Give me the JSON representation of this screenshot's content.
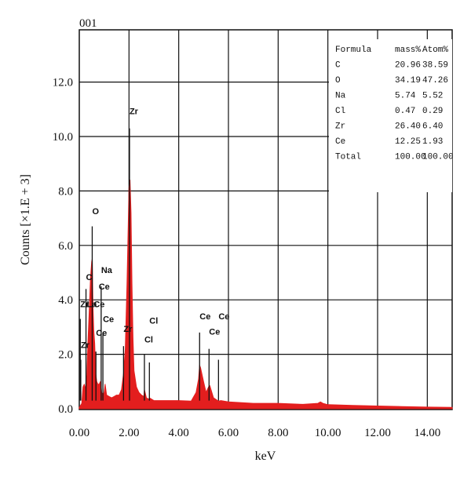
{
  "chart_data": {
    "type": "line",
    "sample_id": "001",
    "xlabel": "keV",
    "ylabel": "Counts [×1.E + 3]",
    "xlim": [
      0,
      15
    ],
    "ylim": [
      0,
      14
    ],
    "xticks": [
      "0.00",
      "2.00",
      "4.00",
      "6.00",
      "8.00",
      "10.00",
      "12.00",
      "14.00"
    ],
    "yticks": [
      "0.0",
      "2.0",
      "4.0",
      "6.0",
      "8.0",
      "10.0",
      "12.0"
    ],
    "grid": true,
    "spectrum_color": "#e31e1e",
    "spectrum": {
      "x": [
        0.0,
        0.1,
        0.15,
        0.2,
        0.25,
        0.28,
        0.3,
        0.35,
        0.4,
        0.45,
        0.5,
        0.52,
        0.55,
        0.58,
        0.62,
        0.66,
        0.7,
        0.75,
        0.8,
        0.85,
        0.88,
        0.9,
        0.95,
        1.0,
        1.04,
        1.1,
        1.2,
        1.3,
        1.4,
        1.5,
        1.6,
        1.7,
        1.78,
        1.85,
        1.92,
        1.97,
        2.0,
        2.04,
        2.08,
        2.12,
        2.16,
        2.2,
        2.3,
        2.4,
        2.5,
        2.6,
        2.62,
        2.7,
        2.8,
        2.82,
        3.0,
        3.5,
        4.0,
        4.5,
        4.7,
        4.8,
        4.84,
        4.88,
        5.0,
        5.1,
        5.2,
        5.25,
        5.3,
        5.4,
        5.6,
        5.7,
        6.0,
        7.0,
        8.0,
        9.0,
        9.6,
        9.7,
        9.8,
        10.0,
        11.0,
        12.0,
        13.0,
        14.0,
        15.0
      ],
      "y": [
        0.05,
        0.2,
        0.8,
        0.9,
        0.7,
        1.2,
        1.1,
        2.5,
        3.6,
        4.8,
        5.4,
        5.5,
        3.8,
        2.9,
        2.4,
        1.3,
        1.0,
        0.9,
        0.9,
        1.0,
        0.8,
        0.6,
        0.5,
        0.6,
        0.9,
        0.5,
        0.45,
        0.4,
        0.45,
        0.5,
        0.5,
        0.7,
        1.3,
        2.2,
        4.6,
        6.8,
        8.1,
        8.4,
        7.2,
        4.6,
        2.6,
        1.4,
        0.8,
        0.6,
        0.5,
        0.45,
        0.7,
        0.4,
        0.35,
        0.4,
        0.3,
        0.3,
        0.3,
        0.28,
        0.6,
        1.1,
        1.6,
        1.5,
        1.0,
        0.6,
        0.8,
        0.85,
        0.7,
        0.4,
        0.28,
        0.3,
        0.25,
        0.2,
        0.2,
        0.16,
        0.2,
        0.25,
        0.2,
        0.15,
        0.12,
        0.1,
        0.08,
        0.06,
        0.05
      ]
    },
    "peak_labels": [
      {
        "text": "O",
        "x": 0.52,
        "y": 7.15,
        "line_top": 6.7,
        "line_bottom": 0.3
      },
      {
        "text": "C",
        "x": 0.27,
        "y": 4.73,
        "line_top": 4.4,
        "line_bottom": 0.3
      },
      {
        "text": "Zr",
        "x": 0.04,
        "y": 3.73,
        "line_top": 3.3,
        "line_bottom": 0.3
      },
      {
        "text": "La",
        "x": 0.3,
        "y": 3.73,
        "line_top": null,
        "line_bottom": null
      },
      {
        "text": "Ce",
        "x": 0.58,
        "y": 3.73,
        "line_top": null,
        "line_bottom": null
      },
      {
        "text": "Zr",
        "x": 0.06,
        "y": 2.23,
        "line_top": 1.8,
        "line_bottom": 0.3
      },
      {
        "text": "Ce",
        "x": 0.67,
        "y": 2.68,
        "line_top": 2.1,
        "line_bottom": 0.3
      },
      {
        "text": "Na",
        "x": 0.88,
        "y": 4.98,
        "line_top": 4.5,
        "line_bottom": 0.3
      },
      {
        "text": "Ce",
        "x": 0.78,
        "y": 4.38,
        "line_top": null,
        "line_bottom": null
      },
      {
        "text": "Ce",
        "x": 0.95,
        "y": 3.18,
        "line_top": 2.8,
        "line_bottom": 0.3
      },
      {
        "text": "Zr",
        "x": 2.02,
        "y": 10.82,
        "line_top": 10.3,
        "line_bottom": 0.3
      },
      {
        "text": "Zr",
        "x": 1.78,
        "y": 2.83,
        "line_top": 2.3,
        "line_bottom": 0.3
      },
      {
        "text": "Cl",
        "x": 2.82,
        "y": 3.13,
        "line_top": 1.7,
        "line_bottom": 0.3
      },
      {
        "text": "Cl",
        "x": 2.62,
        "y": 2.43,
        "line_top": 2.0,
        "line_bottom": 0.3
      },
      {
        "text": "Ce",
        "x": 4.84,
        "y": 3.28,
        "line_top": 2.8,
        "line_bottom": 0.3
      },
      {
        "text": "Ce",
        "x": 5.22,
        "y": 2.73,
        "line_top": 2.2,
        "line_bottom": 0.3
      },
      {
        "text": "Ce",
        "x": 5.6,
        "y": 3.28,
        "line_top": 1.8,
        "line_bottom": 0.3
      }
    ],
    "table": {
      "headers": [
        "Formula",
        "mass%",
        "Atom%"
      ],
      "rows": [
        [
          "C",
          "20.96",
          "38.59"
        ],
        [
          "O",
          "34.19",
          "47.26"
        ],
        [
          "Na",
          "5.74",
          "5.52"
        ],
        [
          "Cl",
          "0.47",
          "0.29"
        ],
        [
          "Zr",
          "26.40",
          "6.40"
        ],
        [
          "Ce",
          "12.25",
          "1.93"
        ],
        [
          "Total",
          "100.00",
          "100.00"
        ]
      ]
    }
  }
}
